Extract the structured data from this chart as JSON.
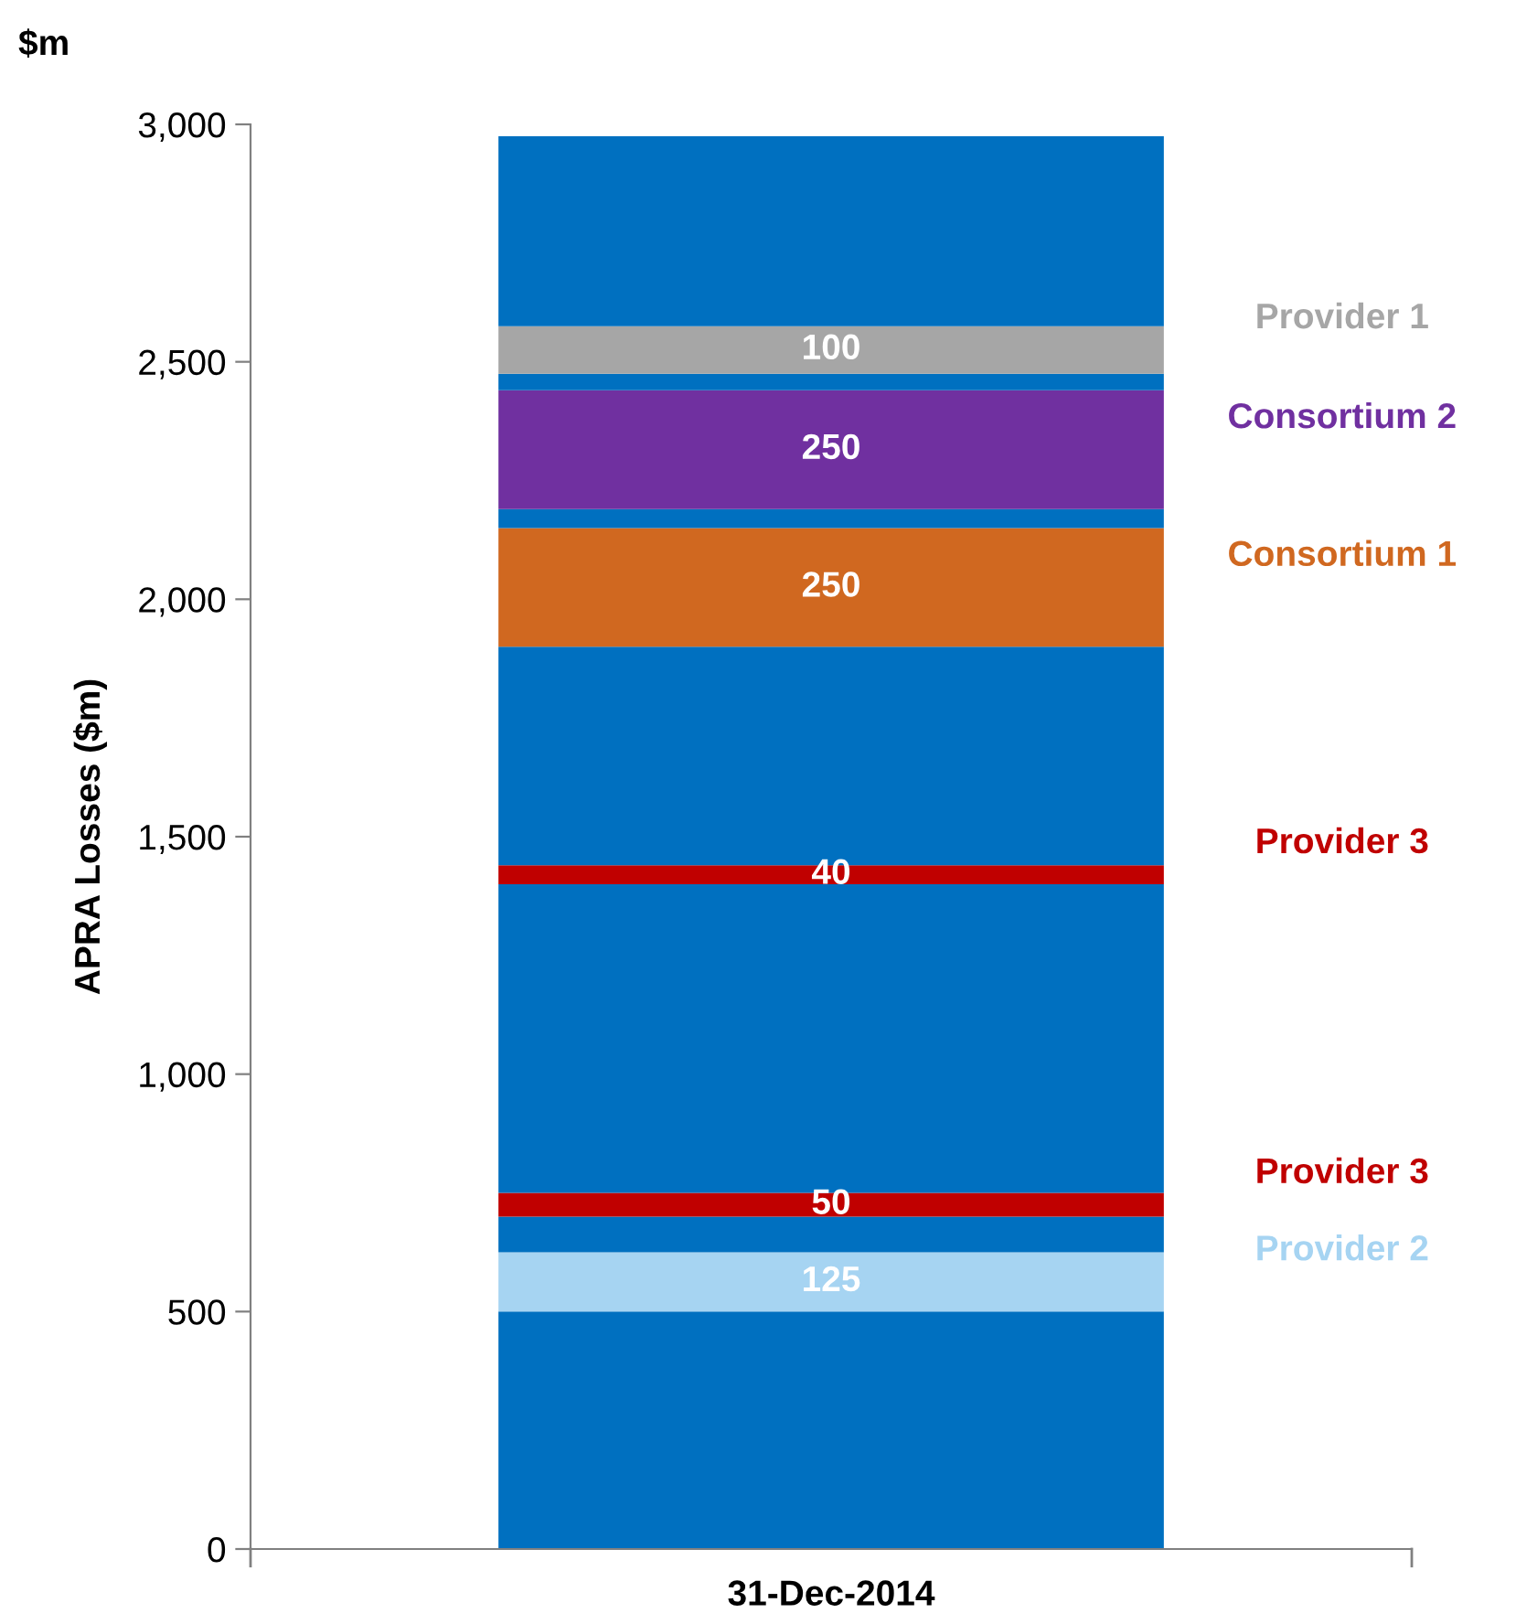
{
  "chart_data": {
    "type": "bar",
    "stacked": true,
    "ylabel": "APRA Losses ($m)",
    "annotations": [
      "$m"
    ],
    "categories": [
      "31-Dec-2014"
    ],
    "ylim": [
      0,
      3000
    ],
    "yticks": [
      0,
      500,
      {
        "value": 1000,
        "label": "1,000"
      },
      {
        "value": 1500,
        "label": "1,500"
      },
      {
        "value": 2000,
        "label": "2,000"
      },
      {
        "value": 2500,
        "label": "2,500"
      },
      {
        "value": 3000,
        "label": "3,000"
      }
    ],
    "grid": false,
    "legend": false,
    "series": [
      {
        "color": "#0070c0",
        "values": [
          500
        ]
      },
      {
        "name": "Provider 2",
        "color": "#a6d4f2",
        "values": [
          125
        ],
        "value_labels": [
          "125"
        ]
      },
      {
        "color": "#0070c0",
        "values": [
          75
        ]
      },
      {
        "name": "Provider 3",
        "color": "#c00000",
        "values": [
          50
        ],
        "value_labels": [
          "50"
        ]
      },
      {
        "color": "#0070c0",
        "values": [
          650
        ]
      },
      {
        "name": "Provider 3",
        "color": "#c00000",
        "values": [
          40
        ],
        "value_labels": [
          "40"
        ]
      },
      {
        "color": "#0070c0",
        "values": [
          460
        ]
      },
      {
        "name": "Consortium 1",
        "color": "#d06820",
        "values": [
          250
        ],
        "value_labels": [
          "250"
        ]
      },
      {
        "color": "#0070c0",
        "values": [
          40
        ]
      },
      {
        "name": "Consortium 2",
        "color": "#7030a0",
        "values": [
          250
        ],
        "value_labels": [
          "250"
        ]
      },
      {
        "color": "#0070c0",
        "values": [
          35
        ]
      },
      {
        "name": "Provider 1",
        "color": "#a6a6a6",
        "values": [
          100
        ],
        "value_labels": [
          "100"
        ]
      },
      {
        "color": "#0070c0",
        "values": [
          400
        ]
      }
    ]
  }
}
